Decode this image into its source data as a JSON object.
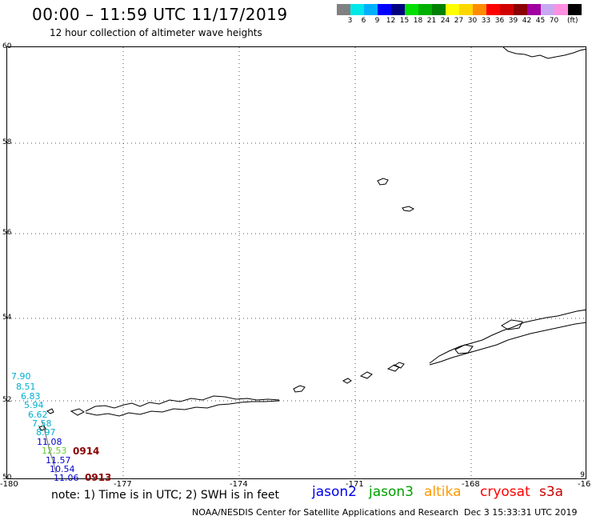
{
  "header": {
    "title": "00:00 – 11:59 UTC 11/17/2019",
    "subtitle": "12 hour collection of altimeter wave heights"
  },
  "legend": {
    "unit": "(ft)",
    "bins": [
      {
        "color": "#808080",
        "label": ""
      },
      {
        "color": "#00e8e8",
        "label": "3"
      },
      {
        "color": "#00b0ff",
        "label": "6"
      },
      {
        "color": "#0000ff",
        "label": "9"
      },
      {
        "color": "#000080",
        "label": "12"
      },
      {
        "color": "#00e000",
        "label": "15"
      },
      {
        "color": "#00b000",
        "label": "18"
      },
      {
        "color": "#008000",
        "label": "21"
      },
      {
        "color": "#ffff00",
        "label": "24"
      },
      {
        "color": "#ffd700",
        "label": "27"
      },
      {
        "color": "#ff8c00",
        "label": "30"
      },
      {
        "color": "#ff0000",
        "label": "33"
      },
      {
        "color": "#d00000",
        "label": "36"
      },
      {
        "color": "#8b0000",
        "label": "39"
      },
      {
        "color": "#a000a0",
        "label": "42"
      },
      {
        "color": "#c8a8f0",
        "label": "45"
      },
      {
        "color": "#ff90e0",
        "label": "70"
      },
      {
        "color": "#000000",
        "label": ""
      }
    ]
  },
  "map": {
    "lon_range": [
      -180,
      -165
    ],
    "lat_range": [
      50,
      60
    ],
    "lat_ticks": [
      {
        "value": 50,
        "label": "50"
      },
      {
        "value": 52,
        "label": "52"
      },
      {
        "value": 54,
        "label": "54"
      },
      {
        "value": 56,
        "label": "56"
      },
      {
        "value": 58,
        "label": "58"
      },
      {
        "value": 60,
        "label": "60"
      }
    ],
    "lon_ticks": [
      {
        "value": -180,
        "label": "-180"
      },
      {
        "value": -177,
        "label": "-177"
      },
      {
        "value": -174,
        "label": "-174"
      },
      {
        "value": -171,
        "label": "-171"
      },
      {
        "value": -168,
        "label": "-168"
      },
      {
        "value": -165,
        "label": "-16"
      }
    ],
    "right_edge_label": "9",
    "observations": [
      {
        "label": "7.90",
        "color": "#00b0d0"
      },
      {
        "label": "8.51",
        "color": "#00b0d0"
      },
      {
        "label": "6.83",
        "color": "#00b0d0"
      },
      {
        "label": "5.94",
        "color": "#00b0d0"
      },
      {
        "label": "6.62",
        "color": "#00b0d0"
      },
      {
        "label": "7.58",
        "color": "#00b0d0"
      },
      {
        "label": "8.97",
        "color": "#00b0d0"
      },
      {
        "label": "11.08",
        "color": "#0000cc"
      },
      {
        "label": "12.53",
        "color": "#66cc33"
      },
      {
        "label": "11.57",
        "color": "#0000cc"
      },
      {
        "label": "10.54",
        "color": "#0000cc"
      },
      {
        "label": "11.06",
        "color": "#0000cc"
      }
    ],
    "pass_labels": [
      "0914",
      "0913"
    ]
  },
  "note": "note: 1) Time is in UTC; 2) SWH is in feet",
  "satellites": [
    {
      "name": "jason2",
      "color": "#0000ee"
    },
    {
      "name": "jason3",
      "color": "#00a000"
    },
    {
      "name": "altika",
      "color": "#ff9900"
    },
    {
      "name": "cryosat",
      "color": "#ff0000"
    },
    {
      "name": "s3a",
      "color": "#cc0000"
    }
  ],
  "footer": {
    "credit": "NOAA/NESDIS Center for Satellite Applications and Research",
    "generated": "Dec  3 15:33:31 UTC 2019"
  }
}
